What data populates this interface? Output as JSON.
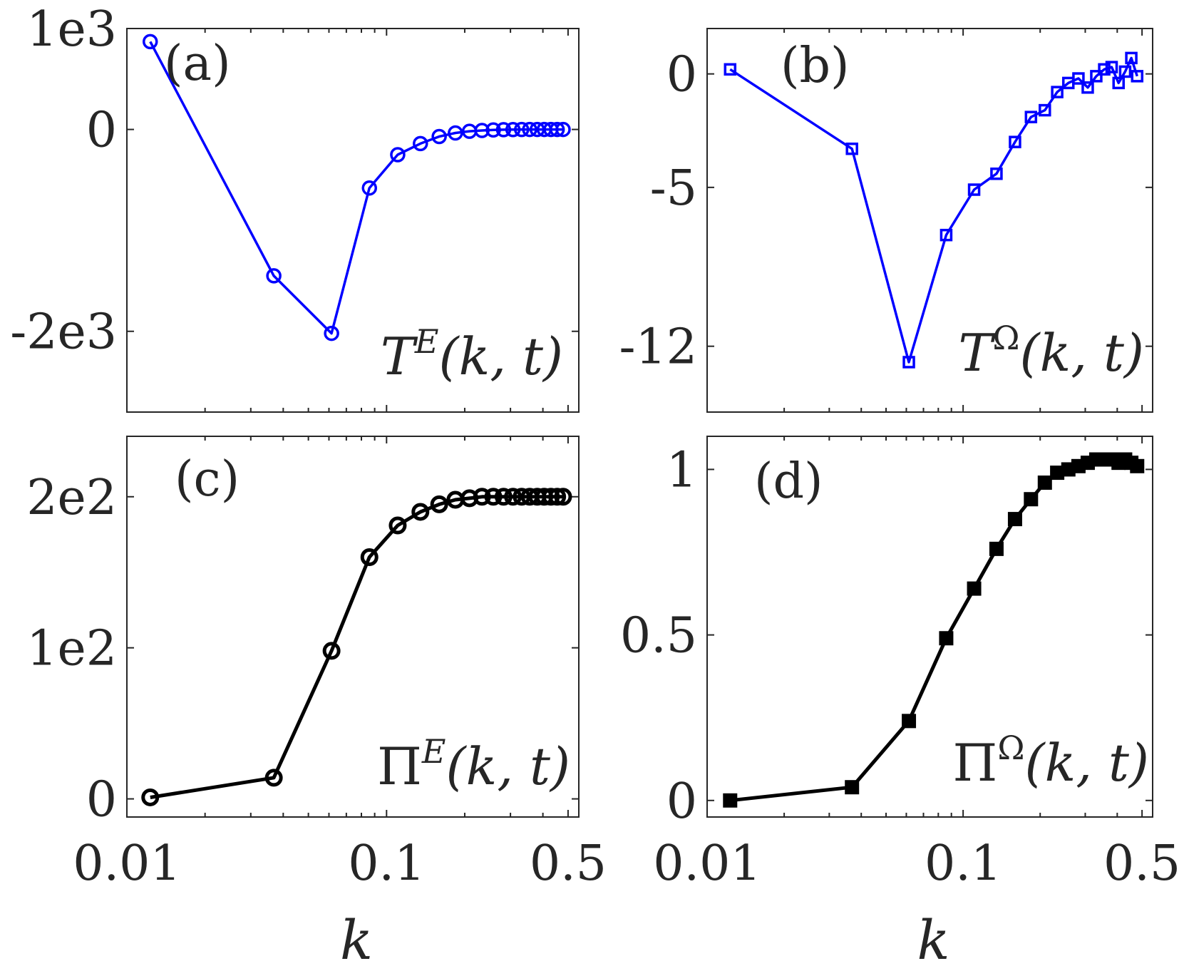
{
  "colors": {
    "blue": "#0000ff",
    "black": "#000000",
    "axis": "#262626"
  },
  "chart_data": [
    {
      "panel": "a",
      "type": "line",
      "label": "(a)",
      "series_name": "T^E(k,t)",
      "series_label": {
        "base": "T",
        "sup": "E",
        "args": "(k, t)"
      },
      "color": "#0000ff",
      "marker": "circle-open",
      "xscale": "log",
      "xlim": [
        0.01,
        0.55
      ],
      "ylim": [
        -2800,
        1000
      ],
      "xticks": [
        0.01,
        0.1,
        0.5
      ],
      "yticks": [
        -2000,
        0,
        1000
      ],
      "yticklabels": [
        "-2e3",
        "0",
        "1e3"
      ],
      "xticklabels": [],
      "x": [
        0.0123,
        0.0368,
        0.0614,
        0.0859,
        0.1104,
        0.135,
        0.1595,
        0.1841,
        0.2086,
        0.2331,
        0.2577,
        0.2822,
        0.3068,
        0.3313,
        0.3558,
        0.3804,
        0.4049,
        0.4295,
        0.454,
        0.4785
      ],
      "y": [
        870,
        -1450,
        -2020,
        -580,
        -250,
        -140,
        -70,
        -35,
        -18,
        -10,
        -5,
        -2,
        -1,
        -0.5,
        0,
        0,
        0,
        0,
        0,
        0
      ],
      "xlabel": "",
      "legend_position": "bottom-right"
    },
    {
      "panel": "b",
      "type": "line",
      "label": "(b)",
      "series_name": "T^Ω(k,t)",
      "series_label": {
        "base": "T",
        "sup": "Ω",
        "args": "(k, t)"
      },
      "color": "#0000ff",
      "marker": "square-open",
      "xscale": "log",
      "xlim": [
        0.01,
        0.55
      ],
      "ylim": [
        -14.9,
        2.0
      ],
      "xticks": [
        0.01,
        0.1,
        0.5
      ],
      "yticks": [
        -12,
        -5,
        0
      ],
      "yticklabels": [
        "-12",
        "-5",
        "0"
      ],
      "xticklabels": [],
      "x": [
        0.0123,
        0.0368,
        0.0614,
        0.0859,
        0.1104,
        0.135,
        0.1595,
        0.1841,
        0.2086,
        0.2331,
        0.2577,
        0.2822,
        0.3068,
        0.3313,
        0.3558,
        0.3804,
        0.4049,
        0.4295,
        0.454,
        0.4785
      ],
      "y": [
        0.2,
        -3.3,
        -12.7,
        -7.1,
        -5.1,
        -4.4,
        -3.0,
        -1.9,
        -1.6,
        -0.8,
        -0.4,
        -0.2,
        -0.6,
        -0.1,
        0.2,
        0.3,
        -0.4,
        0.1,
        0.7,
        -0.1
      ],
      "xlabel": "",
      "legend_position": "bottom-right"
    },
    {
      "panel": "c",
      "type": "line",
      "label": "(c)",
      "series_name": "Π^E(k,t)",
      "series_label": {
        "base": "Π",
        "sup": "E",
        "args": "(k, t)"
      },
      "color": "#000000",
      "marker": "circle-open",
      "xscale": "log",
      "xlim": [
        0.01,
        0.55
      ],
      "ylim": [
        -12,
        240
      ],
      "xticks": [
        0.01,
        0.1,
        0.5
      ],
      "yticks": [
        0,
        100,
        200
      ],
      "yticklabels": [
        "0",
        "1e2",
        "2e2"
      ],
      "xticklabels": [
        "0.01",
        "0.1",
        "0.5"
      ],
      "x": [
        0.0123,
        0.0368,
        0.0614,
        0.0859,
        0.1104,
        0.135,
        0.1595,
        0.1841,
        0.2086,
        0.2331,
        0.2577,
        0.2822,
        0.3068,
        0.3313,
        0.3558,
        0.3804,
        0.4049,
        0.4295,
        0.454,
        0.4785
      ],
      "y": [
        1,
        14,
        98,
        160,
        181,
        190,
        195,
        198,
        199,
        200,
        200,
        200,
        200,
        200,
        200,
        200,
        200,
        200,
        200,
        200
      ],
      "xlabel": "k",
      "legend_position": "bottom-right"
    },
    {
      "panel": "d",
      "type": "line",
      "label": "(d)",
      "series_name": "Π^Ω(k,t)",
      "series_label": {
        "base": "Π",
        "sup": "Ω",
        "args": "(k, t)"
      },
      "color": "#000000",
      "marker": "square-filled",
      "xscale": "log",
      "xlim": [
        0.01,
        0.55
      ],
      "ylim": [
        -0.05,
        1.1
      ],
      "xticks": [
        0.01,
        0.1,
        0.5
      ],
      "yticks": [
        0,
        0.5,
        1
      ],
      "yticklabels": [
        "0",
        "0.5",
        "1"
      ],
      "xticklabels": [
        "0.01",
        "0.1",
        "0.5"
      ],
      "x": [
        0.0123,
        0.0368,
        0.0614,
        0.0859,
        0.1104,
        0.135,
        0.1595,
        0.1841,
        0.2086,
        0.2331,
        0.2577,
        0.2822,
        0.3068,
        0.3313,
        0.3558,
        0.3804,
        0.4049,
        0.4295,
        0.454,
        0.4785
      ],
      "y": [
        0.0,
        0.04,
        0.24,
        0.49,
        0.64,
        0.76,
        0.85,
        0.91,
        0.96,
        0.99,
        1.0,
        1.01,
        1.02,
        1.03,
        1.03,
        1.03,
        1.02,
        1.03,
        1.02,
        1.01
      ],
      "xlabel": "k",
      "legend_position": "bottom-right"
    }
  ]
}
